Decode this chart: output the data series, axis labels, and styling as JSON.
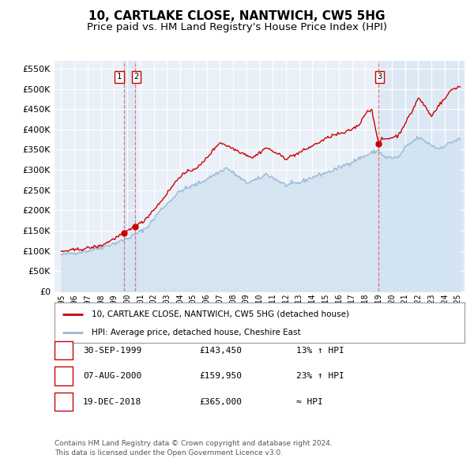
{
  "title": "10, CARTLAKE CLOSE, NANTWICH, CW5 5HG",
  "subtitle": "Price paid vs. HM Land Registry's House Price Index (HPI)",
  "legend_line1": "10, CARTLAKE CLOSE, NANTWICH, CW5 5HG (detached house)",
  "legend_line2": "HPI: Average price, detached house, Cheshire East",
  "footer1": "Contains HM Land Registry data © Crown copyright and database right 2024.",
  "footer2": "This data is licensed under the Open Government Licence v3.0.",
  "transactions": [
    {
      "id": 1,
      "date": "30-SEP-1999",
      "year": 1999.75,
      "price": 143450,
      "pct": "13% ↑ HPI"
    },
    {
      "id": 2,
      "date": "07-AUG-2000",
      "year": 2000.6,
      "price": 159950,
      "pct": "23% ↑ HPI"
    },
    {
      "id": 3,
      "date": "19-DEC-2018",
      "year": 2018.97,
      "price": 365000,
      "pct": "≈ HPI"
    }
  ],
  "hpi_color": "#9ab8d8",
  "hpi_fill_color": "#d0e2f0",
  "price_color": "#cc0000",
  "vline_color": "#dd6666",
  "marker_color": "#cc0000",
  "span12_color": "#dce8f5",
  "span3_color": "#dce8f5",
  "xlim_left": 1994.5,
  "xlim_right": 2025.5,
  "ylim_bottom": 0,
  "ylim_top": 570000,
  "yticks": [
    0,
    50000,
    100000,
    150000,
    200000,
    250000,
    300000,
    350000,
    400000,
    450000,
    500000,
    550000
  ],
  "xticks": [
    1995,
    1996,
    1997,
    1998,
    1999,
    2000,
    2001,
    2002,
    2003,
    2004,
    2005,
    2006,
    2007,
    2008,
    2009,
    2010,
    2011,
    2012,
    2013,
    2014,
    2015,
    2016,
    2017,
    2018,
    2019,
    2020,
    2021,
    2022,
    2023,
    2024,
    2025
  ],
  "background_color": "#eaf0f8",
  "grid_color": "#ffffff",
  "title_fontsize": 11,
  "subtitle_fontsize": 9.5
}
